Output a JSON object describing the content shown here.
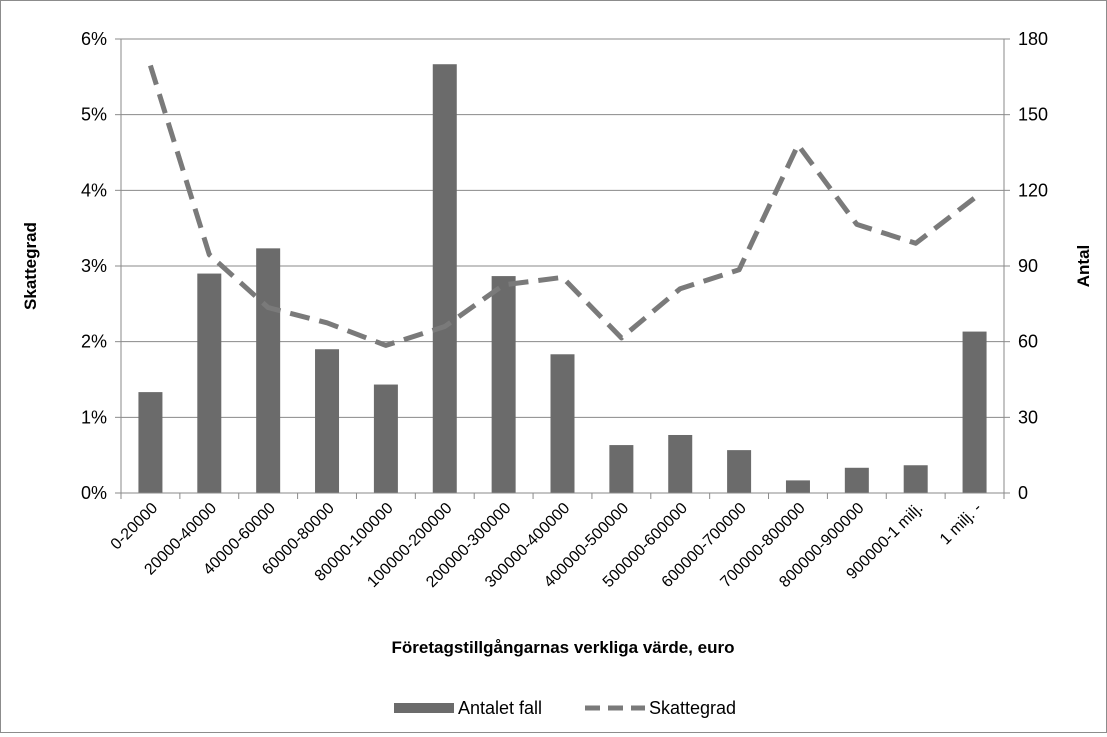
{
  "chart_data": {
    "type": "bar",
    "title": "",
    "xlabel": "Företagstillgångarnas verkliga värde, euro",
    "ylabel_left": "Skattegrad",
    "ylabel_right": "Antal",
    "categories": [
      "0-20000",
      "20000-40000",
      "40000-60000",
      "60000-80000",
      "80000-100000",
      "100000-200000",
      "200000-300000",
      "300000-400000",
      "400000-500000",
      "500000-600000",
      "600000-700000",
      "700000-800000",
      "800000-900000",
      "900000-1 milj.",
      "1 milj. -"
    ],
    "series": [
      {
        "name": "Antalet fall",
        "type": "bar",
        "axis": "right",
        "color": "#6b6b6b",
        "values": [
          40,
          87,
          97,
          57,
          43,
          170,
          86,
          55,
          19,
          23,
          17,
          5,
          10,
          11,
          64
        ]
      },
      {
        "name": "Skattegrad",
        "type": "line",
        "dash": true,
        "axis": "left",
        "color": "#7a7a7a",
        "values": [
          5.65,
          3.15,
          2.45,
          2.25,
          1.95,
          2.2,
          2.75,
          2.85,
          2.05,
          2.7,
          2.95,
          4.6,
          3.55,
          3.3,
          3.9
        ]
      }
    ],
    "ylim_left": [
      0,
      6
    ],
    "ylim_right": [
      0,
      180
    ],
    "yticks_left": [
      "0%",
      "1%",
      "2%",
      "3%",
      "4%",
      "5%",
      "6%"
    ],
    "yticks_right": [
      "0",
      "30",
      "60",
      "90",
      "120",
      "150",
      "180"
    ],
    "grid": "horizontal",
    "legend_position": "bottom"
  }
}
